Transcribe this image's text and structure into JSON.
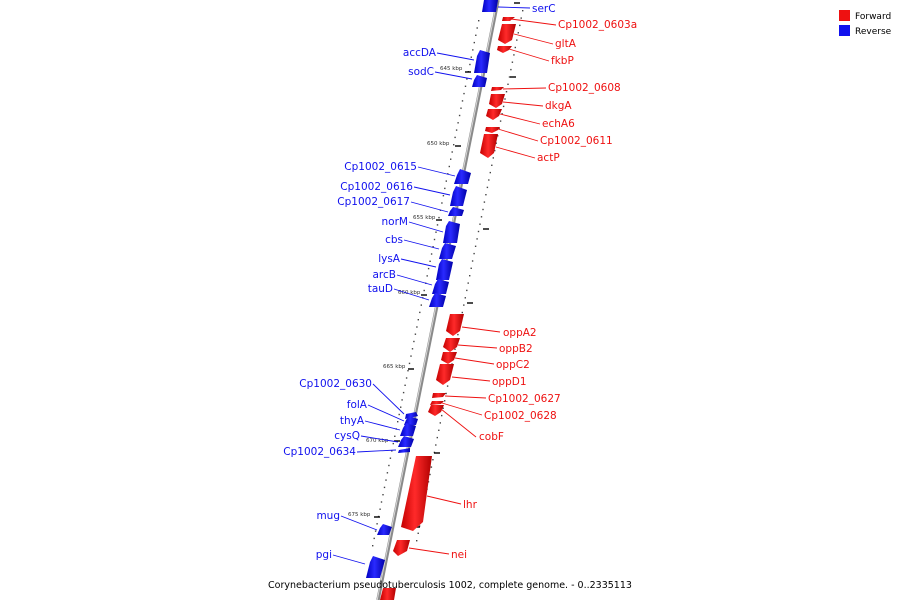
{
  "legend": {
    "forward": {
      "label": "Forward",
      "color": "#ee1111"
    },
    "reverse": {
      "label": "Reverse",
      "color": "#1111ee"
    }
  },
  "title": "Corynebacterium pseudotuberculosis 1002, complete genome. - 0..2335113",
  "scale_labels": [
    "645 kbp",
    "650 kbp",
    "655 kbp",
    "660 kbp",
    "665 kbp",
    "670 kbp",
    "675 kbp"
  ],
  "forward_genes": [
    "Cp1002_0603a",
    "gltA",
    "fkbP",
    "Cp1002_0608",
    "dkgA",
    "echA6",
    "Cp1002_0611",
    "actP",
    "oppA2",
    "oppB2",
    "oppC2",
    "oppD1",
    "Cp1002_0627",
    "Cp1002_0628",
    "cobF",
    "lhr",
    "nei"
  ],
  "reverse_genes": [
    "serC",
    "accDA",
    "sodC",
    "Cp1002_0615",
    "Cp1002_0616",
    "Cp1002_0617",
    "norM",
    "cbs",
    "lysA",
    "arcB",
    "tauD",
    "Cp1002_0630",
    "folA",
    "thyA",
    "cysQ",
    "Cp1002_0634",
    "mug",
    "pgi"
  ]
}
